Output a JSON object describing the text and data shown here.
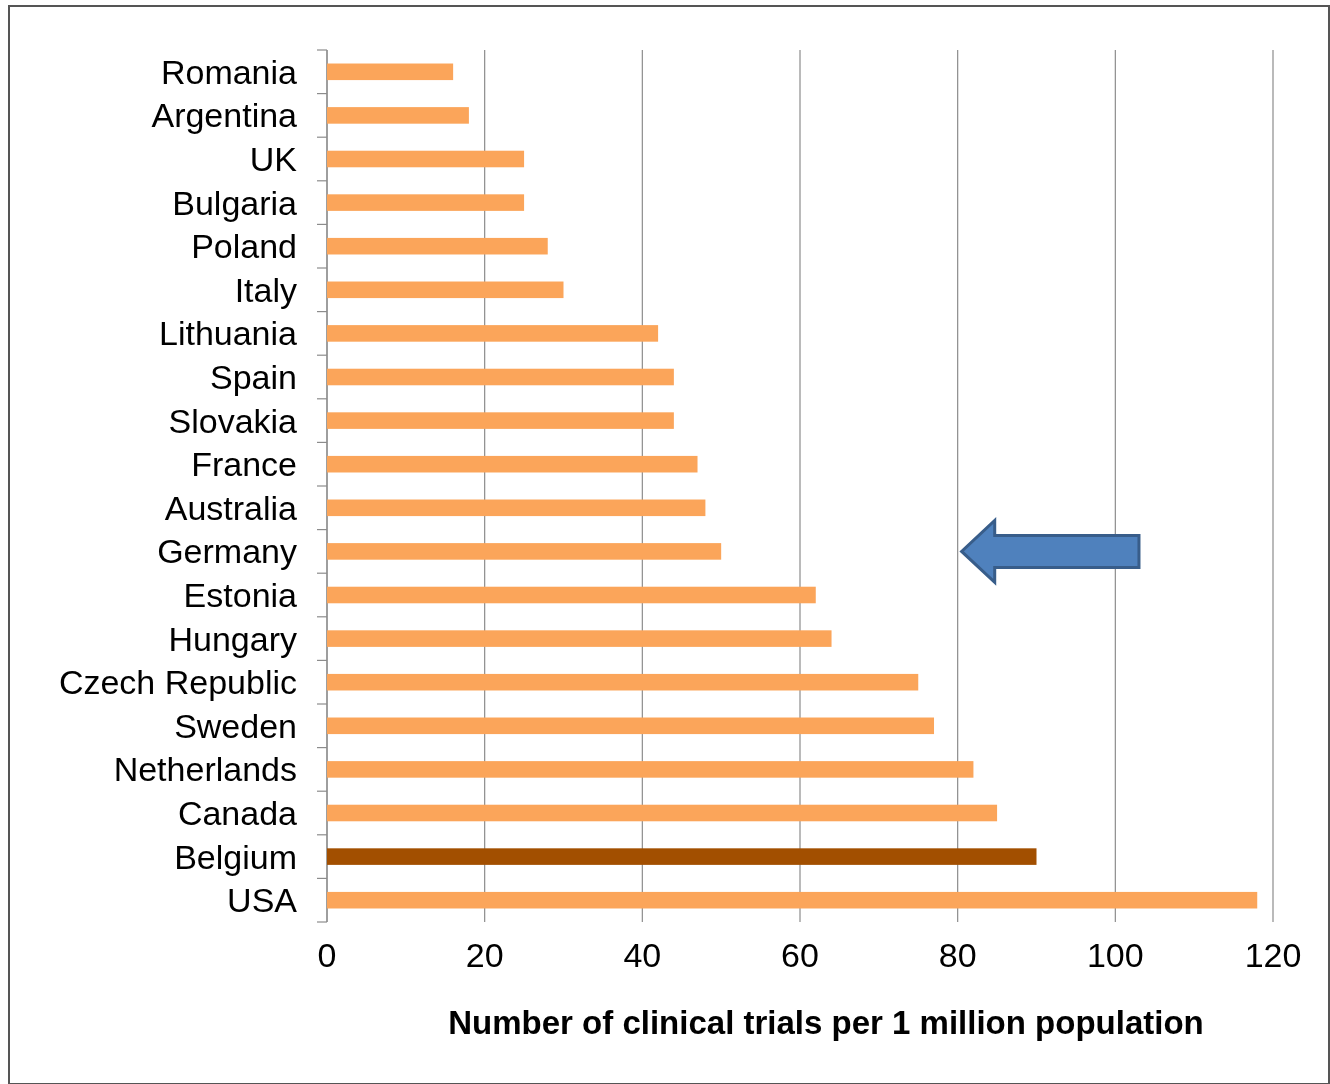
{
  "chart_data": {
    "type": "bar",
    "orientation": "horizontal",
    "xlabel": "Number of clinical trials per 1 million population",
    "categories": [
      "Romania",
      "Argentina",
      "UK",
      "Bulgaria",
      "Poland",
      "Italy",
      "Lithuania",
      "Spain",
      "Slovakia",
      "France",
      "Australia",
      "Germany",
      "Estonia",
      "Hungary",
      "Czech Republic",
      "Sweden",
      "Netherlands",
      "Canada",
      "Belgium",
      "USA"
    ],
    "values": [
      16,
      18,
      25,
      25,
      28,
      30,
      42,
      44,
      44,
      47,
      48,
      50,
      62,
      64,
      75,
      77,
      82,
      85,
      90,
      118
    ],
    "colors": [
      "#fba55a",
      "#fba55a",
      "#fba55a",
      "#fba55a",
      "#fba55a",
      "#fba55a",
      "#fba55a",
      "#fba55a",
      "#fba55a",
      "#fba55a",
      "#fba55a",
      "#fba55a",
      "#fba55a",
      "#fba55a",
      "#fba55a",
      "#fba55a",
      "#fba55a",
      "#fba55a",
      "#a24f00",
      "#fba55a"
    ],
    "xlim": [
      0,
      120
    ],
    "xticks": [
      0,
      20,
      40,
      60,
      80,
      100,
      120
    ],
    "grid": "x"
  }
}
